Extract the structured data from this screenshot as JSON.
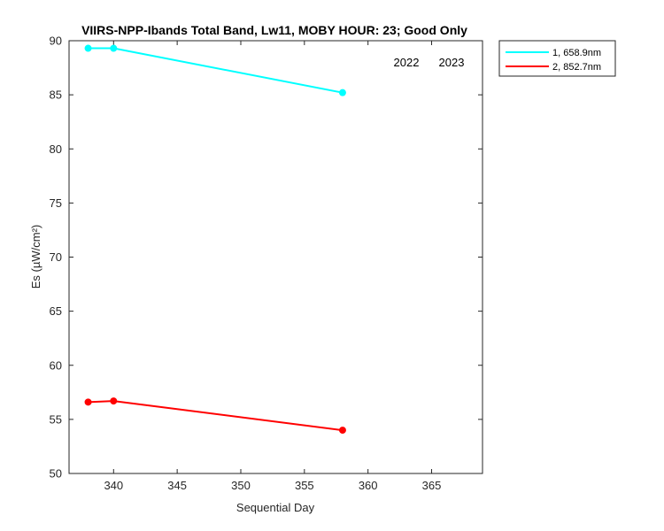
{
  "chart_data": {
    "type": "line",
    "title": "VIIRS-NPP-Ibands Total Band,  Lw11, MOBY HOUR: 23;  Good Only",
    "xlabel": "Sequential Day",
    "ylabel": "Es (µW/cm²)",
    "xlim": [
      336.5,
      369
    ],
    "ylim": [
      50,
      90
    ],
    "xticks": [
      340,
      345,
      350,
      355,
      360,
      365
    ],
    "yticks": [
      50,
      55,
      60,
      65,
      70,
      75,
      80,
      85,
      90
    ],
    "grid": false,
    "legend_position": "outside-top-right",
    "annotations": [
      "2022",
      "2023"
    ],
    "series": [
      {
        "name": "1, 658.9nm",
        "color": "#00ffff",
        "x": [
          338,
          340,
          358
        ],
        "y": [
          89.3,
          89.3,
          85.2
        ]
      },
      {
        "name": "2, 852.7nm",
        "color": "#ff0000",
        "x": [
          338,
          340,
          358
        ],
        "y": [
          56.6,
          56.7,
          54.0
        ]
      }
    ]
  }
}
